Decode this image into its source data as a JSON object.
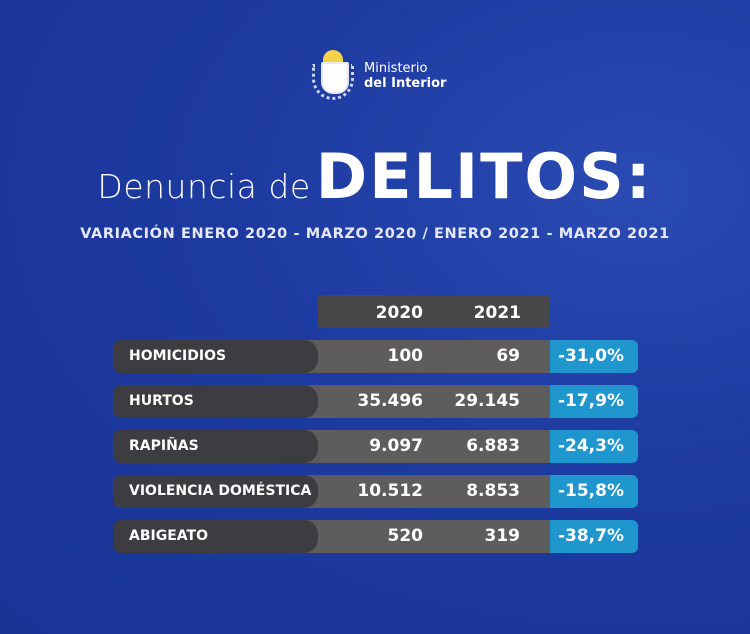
{
  "logo": {
    "line1": "Ministerio",
    "line2": "del Interior"
  },
  "title": {
    "prefix": "Denuncia de",
    "main": "DELITOS:"
  },
  "subtitle": "VARIACIÓN ENERO 2020 - MARZO 2020 / ENERO 2021 - MARZO 2021",
  "table": {
    "headers": [
      "2020",
      "2021"
    ],
    "rows": [
      {
        "label": "HOMICIDIOS",
        "y2020": "100",
        "y2021": "69",
        "change": "-31,0%"
      },
      {
        "label": "HURTOS",
        "y2020": "35.496",
        "y2021": "29.145",
        "change": "-17,9%"
      },
      {
        "label": "RAPIÑAS",
        "y2020": "9.097",
        "y2021": "6.883",
        "change": "-24,3%"
      },
      {
        "label": "VIOLENCIA DOMÉSTICA",
        "y2020": "10.512",
        "y2021": "8.853",
        "change": "-15,8%"
      },
      {
        "label": "ABIGEATO",
        "y2020": "520",
        "y2021": "319",
        "change": "-38,7%"
      }
    ]
  },
  "colors": {
    "background": "#1d3aa0",
    "accent": "#1f96cd",
    "label_cell": "#3d3c40",
    "value_cell": "#5e5c5c"
  }
}
